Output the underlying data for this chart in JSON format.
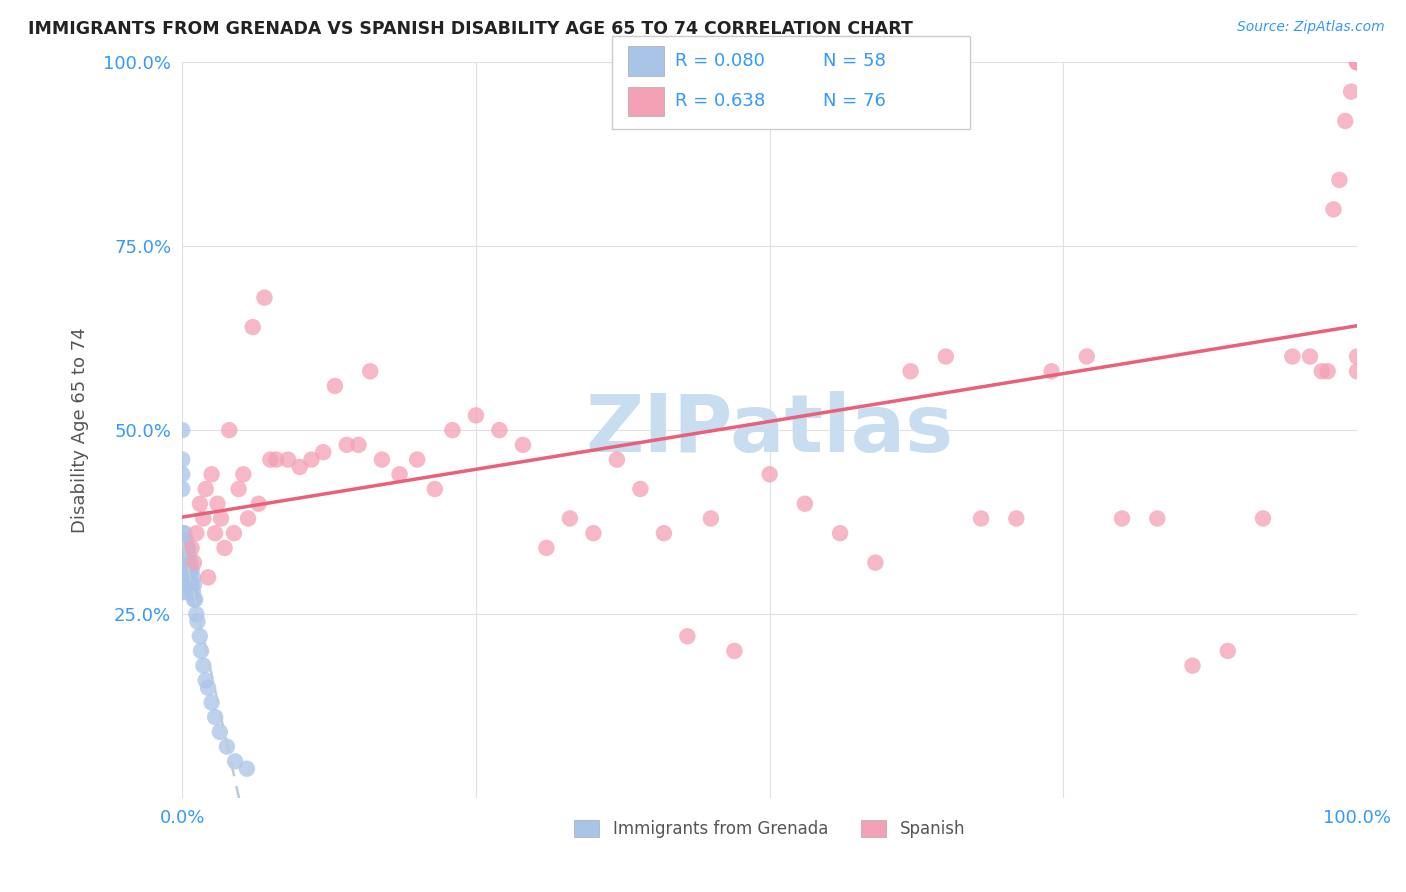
{
  "title": "IMMIGRANTS FROM GRENADA VS SPANISH DISABILITY AGE 65 TO 74 CORRELATION CHART",
  "source": "Source: ZipAtlas.com",
  "ylabel": "Disability Age 65 to 74",
  "watermark": "ZIPatlas",
  "legend_entries": [
    {
      "label": "Immigrants from Grenada",
      "color": "#aac4e8",
      "R": "0.080",
      "N": "58"
    },
    {
      "label": "Spanish",
      "color": "#f4a0b5",
      "R": "0.638",
      "N": "76"
    }
  ],
  "blue_scatter_color": "#aac4e8",
  "pink_scatter_color": "#f4a0b5",
  "blue_line_color": "#bbccdd",
  "pink_line_color": "#e8607a",
  "background_color": "#ffffff",
  "grid_color": "#e0e0e0",
  "title_color": "#222222",
  "axis_label_color": "#555555",
  "tick_color": "#3399ff",
  "watermark_color": "#c8ddf0"
}
